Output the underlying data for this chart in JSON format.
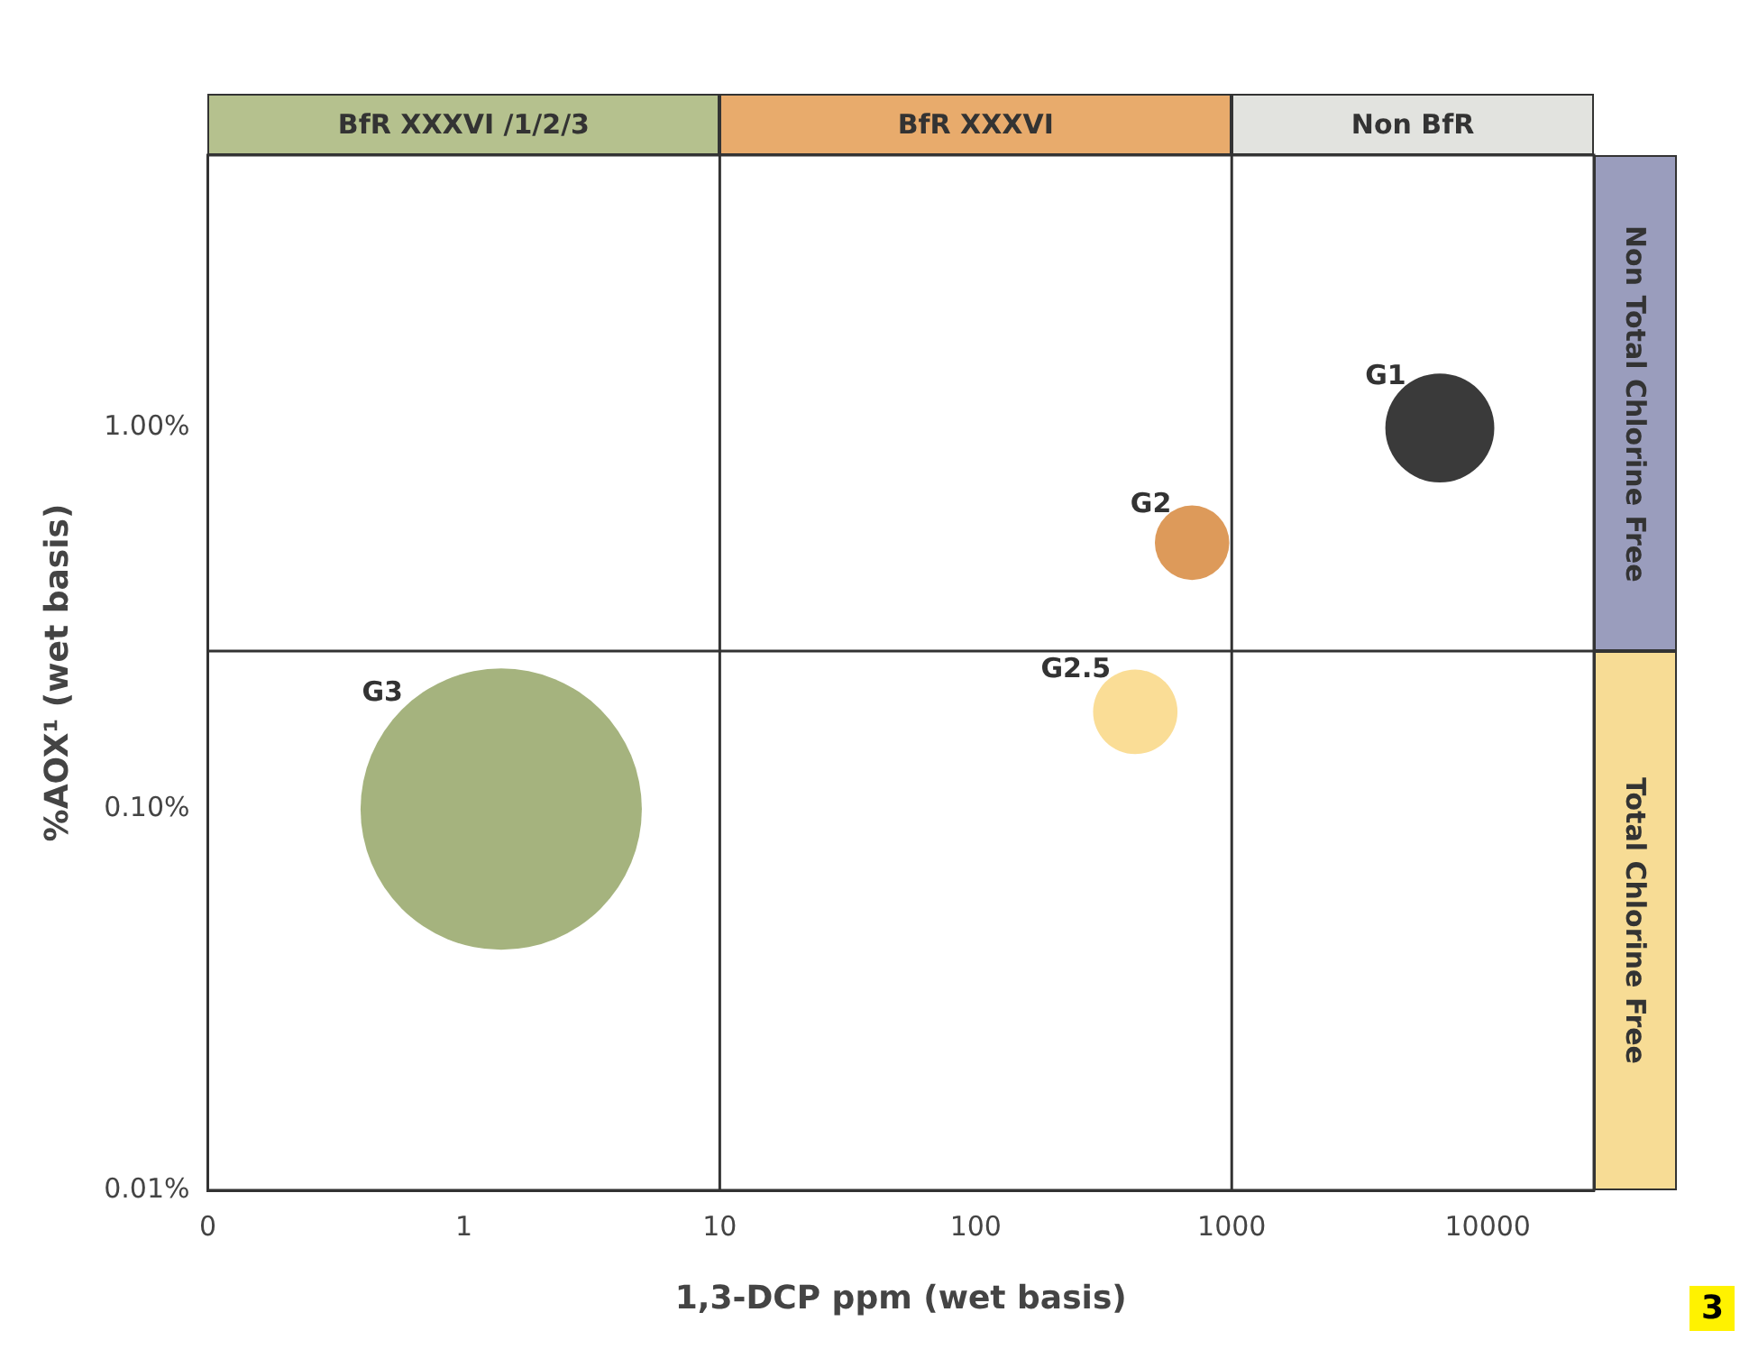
{
  "chart_data": {
    "type": "bubble",
    "xlabel": "1,3-DCP ppm (wet basis)",
    "ylabel": "%AOX¹ (wet basis)",
    "log": "xy",
    "xlim": [
      0.1,
      26000
    ],
    "xticks": [
      {
        "value": 0.1,
        "label": "0"
      },
      1,
      10,
      100,
      1000,
      10000
    ],
    "ylim": [
      0.01,
      5.2
    ],
    "yticks": [
      {
        "value": 0.01,
        "label": "0.01%"
      },
      {
        "value": 0.1,
        "label": "0.10%"
      },
      {
        "value": 1,
        "label": "1.00%"
      }
    ],
    "grid": false,
    "legend": false,
    "series": [
      {
        "name": "G1",
        "color": "#3a3a3a",
        "x": [
          6500
        ],
        "values": [
          1.0
        ],
        "sizes": [
          0.15
        ]
      },
      {
        "name": "G2",
        "color": "#dd9a5a",
        "x": [
          700
        ],
        "values": [
          0.5
        ],
        "sizes": [
          0.07
        ]
      },
      {
        "name": "G2.5",
        "color": "#fadd96",
        "x": [
          420
        ],
        "values": [
          0.18
        ],
        "sizes": [
          0.09
        ]
      },
      {
        "name": "G3",
        "color": "#a5b37e",
        "x": [
          1.4
        ],
        "values": [
          0.1
        ],
        "sizes": [
          1
        ]
      }
    ],
    "ref_lines": [
      {
        "axis": "x",
        "value": 10,
        "color": "#333333",
        "line_style": "solid"
      },
      {
        "axis": "x",
        "value": 1000,
        "color": "#333333",
        "line_style": "solid"
      },
      {
        "axis": "y",
        "value": 0.26,
        "color": "#333333",
        "line_style": "solid"
      }
    ],
    "annotations": [
      "BfR XXXVI /1/2/3",
      "BfR XXXVI",
      "Non BfR",
      "Non Total Chlorine Free",
      "Total Chlorine Free",
      "3"
    ]
  }
}
